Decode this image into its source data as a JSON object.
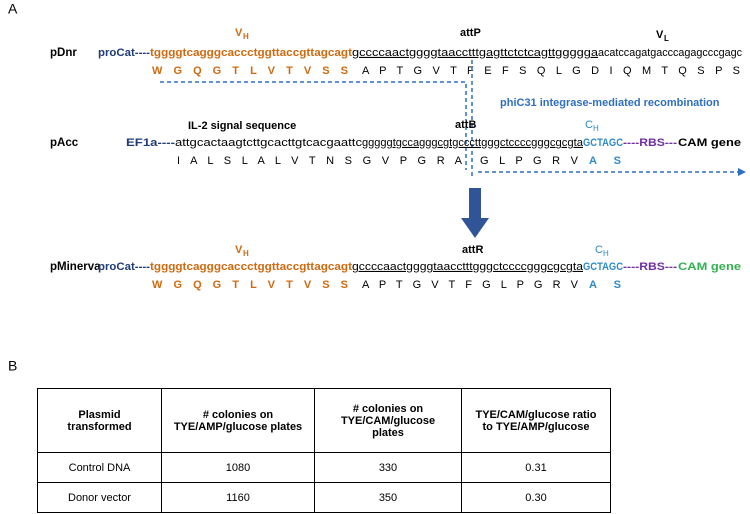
{
  "panel_a": {
    "label": "A",
    "pdnr": {
      "name": "pDnr",
      "vh": "V",
      "vh_sub": "H",
      "att": "attP",
      "vl": "V",
      "vl_sub": "L",
      "seq": [
        "proCat----",
        "tggggtcagggcaccctggttaccgttagcagt",
        "gccccaactggggtaacctttgagttctctcagttggggga",
        "acatccagatgacccagagcccgagc"
      ],
      "aa": [
        "W G Q G T L V T V S S",
        "A P T G V T F E F S Q L G D I Q M T Q S P S"
      ]
    },
    "recombination": "phiC31 integrase-mediated recombination",
    "pacc": {
      "name": "pAcc",
      "signal": "IL-2 signal sequence",
      "att": "attB",
      "ch": "C",
      "ch_sub": "H",
      "seq": [
        "EF1a----",
        "attgcactaagtcttgcacttgtcacgaattc",
        "gggggtgccagggcgtgccct",
        "tgggctccccgggcgcgta",
        "GCTAGC",
        "----RBS---",
        "CAM gene"
      ],
      "aa": [
        "I A L S L A L V T N S G V P G R A",
        "G L P G R V",
        "A S"
      ]
    },
    "pminerva": {
      "name": "pMinerva",
      "vh": "V",
      "vh_sub": "H",
      "att": "attR",
      "ch": "C",
      "ch_sub": "H",
      "seq": [
        "proCat----",
        "tggggtcagggcaccctggttaccgttagcagt",
        "gccccaactggggtaacctttgggctccccgggcgcgta",
        "GCTAGC",
        "----RBS---",
        "CAM gene"
      ],
      "aa": [
        "W G Q G T L V T V S S",
        "A P T G V T F G L P G R V",
        "A S"
      ]
    }
  },
  "panel_b": {
    "label": "B",
    "table": {
      "header": [
        "Plasmid transformed",
        "# colonies on TYE/AMP/glucose plates",
        "# colonies on TYE/CAM/glucose plates",
        "TYE/CAM/glucose ratio to TYE/AMP/glucose"
      ],
      "rows": [
        [
          "Control DNA",
          "1080",
          "330",
          "0.31"
        ],
        [
          "Donor vector",
          "1160",
          "350",
          "0.30"
        ]
      ]
    }
  }
}
